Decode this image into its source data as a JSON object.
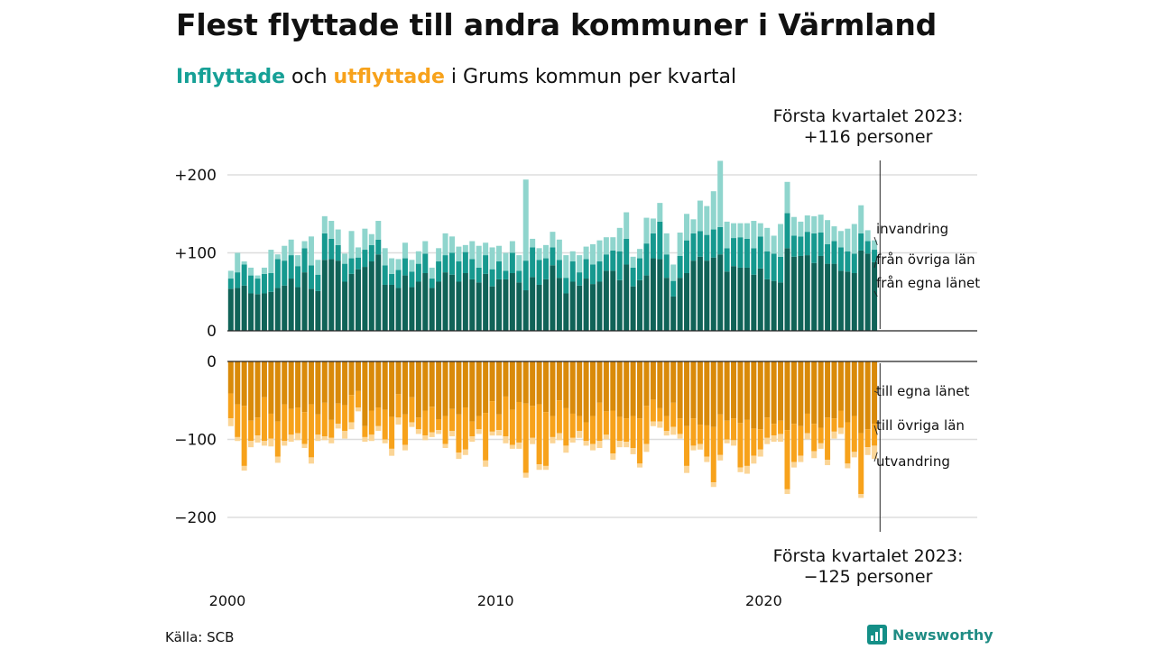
{
  "title": "Flest flyttade till andra kommuner i Värmland",
  "subtitle": {
    "in_word": "Inflyttade",
    "and_word": "och",
    "out_word": "utflyttade",
    "rest": "i Grums kommun per kvartal"
  },
  "callout_top": {
    "line1": "Första kvartalet 2023:",
    "line2": "+116 personer"
  },
  "callout_bottom": {
    "line1": "Första kvartalet 2023:",
    "line2": "−125 personer"
  },
  "source": "Källa: SCB",
  "brand": "Newsworthy",
  "colors": {
    "in_egna": "#106358",
    "in_ovriga": "#16998f",
    "in_invandring": "#8fd5cd",
    "out_egna": "#d98a0a",
    "out_ovriga": "#f7a21b",
    "out_utvandring": "#fbd596",
    "grid": "#dddddd"
  },
  "chart_data": [
    {
      "type": "bar",
      "stacked": true,
      "title": "Inflyttade",
      "x_start": 2000,
      "x_step": "quarter",
      "x_ticks": [
        "2000",
        "2010",
        "2020"
      ],
      "y_ticks": [
        "+200",
        "+100",
        "0"
      ],
      "ylim": [
        0,
        220
      ],
      "grid": true,
      "series": [
        {
          "name": "från egna länet",
          "values": [
            54,
            55,
            58,
            48,
            47,
            48,
            50,
            55,
            58,
            67,
            56,
            75,
            54,
            51,
            91,
            92,
            90,
            63,
            73,
            79,
            82,
            89,
            98,
            59,
            59,
            55,
            71,
            56,
            63,
            74,
            55,
            63,
            75,
            72,
            63,
            74,
            66,
            62,
            73,
            57,
            66,
            66,
            74,
            62,
            52,
            69,
            59,
            66,
            84,
            68,
            48,
            63,
            58,
            67,
            60,
            63,
            77,
            77,
            65,
            85,
            57,
            65,
            71,
            93,
            92,
            68,
            44,
            68,
            74,
            90,
            95,
            90,
            94,
            98,
            76,
            83,
            81,
            81,
            72,
            80,
            66,
            64,
            62,
            106,
            95,
            96,
            97,
            87,
            96,
            86,
            86,
            77,
            76,
            74,
            103,
            99,
            88
          ]
        },
        {
          "name": "från övriga län",
          "values": [
            13,
            20,
            27,
            23,
            20,
            25,
            24,
            37,
            32,
            30,
            27,
            31,
            30,
            21,
            34,
            26,
            20,
            23,
            20,
            15,
            22,
            21,
            19,
            25,
            14,
            23,
            22,
            20,
            23,
            25,
            12,
            26,
            22,
            28,
            26,
            27,
            26,
            19,
            24,
            22,
            23,
            11,
            26,
            15,
            38,
            38,
            32,
            27,
            23,
            23,
            20,
            26,
            17,
            25,
            25,
            26,
            21,
            26,
            37,
            33,
            24,
            28,
            41,
            32,
            48,
            30,
            20,
            28,
            42,
            35,
            33,
            33,
            36,
            35,
            30,
            36,
            39,
            37,
            34,
            41,
            36,
            35,
            33,
            45,
            27,
            25,
            30,
            38,
            30,
            25,
            29,
            30,
            26,
            25,
            22,
            16,
            16
          ]
        },
        {
          "name": "invandring",
          "values": [
            10,
            25,
            4,
            10,
            4,
            8,
            30,
            6,
            19,
            20,
            14,
            9,
            37,
            19,
            22,
            23,
            20,
            13,
            35,
            13,
            27,
            14,
            24,
            22,
            20,
            14,
            20,
            15,
            16,
            16,
            14,
            17,
            28,
            21,
            19,
            9,
            23,
            28,
            16,
            28,
            20,
            23,
            15,
            20,
            104,
            11,
            15,
            17,
            20,
            26,
            29,
            13,
            22,
            16,
            26,
            27,
            22,
            17,
            30,
            34,
            14,
            12,
            33,
            19,
            24,
            27,
            21,
            30,
            34,
            18,
            39,
            37,
            49,
            85,
            34,
            19,
            18,
            20,
            35,
            17,
            30,
            23,
            42,
            40,
            24,
            19,
            21,
            22,
            23,
            31,
            19,
            21,
            29,
            38,
            36,
            14,
            12
          ]
        }
      ]
    },
    {
      "type": "bar",
      "stacked": true,
      "title": "Utflyttade",
      "x_start": 2000,
      "x_step": "quarter",
      "x_ticks": [
        "2000",
        "2010",
        "2020"
      ],
      "y_ticks": [
        "0",
        "−100",
        "−200"
      ],
      "ylim": [
        -210,
        0
      ],
      "grid": true,
      "series": [
        {
          "name": "till egna länet",
          "values": [
            -41,
            -55,
            -57,
            -76,
            -72,
            -46,
            -67,
            -77,
            -55,
            -61,
            -59,
            -65,
            -55,
            -68,
            -53,
            -75,
            -54,
            -56,
            -43,
            -38,
            -83,
            -63,
            -59,
            -62,
            -71,
            -42,
            -68,
            -46,
            -72,
            -63,
            -58,
            -74,
            -70,
            -61,
            -68,
            -59,
            -77,
            -70,
            -66,
            -51,
            -68,
            -45,
            -62,
            -52,
            -54,
            -57,
            -55,
            -65,
            -70,
            -50,
            -60,
            -67,
            -70,
            -78,
            -70,
            -53,
            -64,
            -63,
            -71,
            -73,
            -70,
            -73,
            -57,
            -49,
            -60,
            -70,
            -53,
            -73,
            -83,
            -73,
            -81,
            -82,
            -84,
            -68,
            -76,
            -73,
            -79,
            -75,
            -86,
            -87,
            -72,
            -80,
            -76,
            -88,
            -80,
            -83,
            -67,
            -80,
            -85,
            -72,
            -73,
            -63,
            -78,
            -70,
            -92,
            -87,
            -80
          ]
        },
        {
          "name": "till övriga län",
          "values": [
            -32,
            -42,
            -77,
            -26,
            -23,
            -56,
            -32,
            -45,
            -47,
            -33,
            -33,
            -41,
            -68,
            -26,
            -43,
            -23,
            -26,
            -33,
            -35,
            -21,
            -14,
            -31,
            -24,
            -38,
            -41,
            -30,
            -39,
            -32,
            -15,
            -32,
            -33,
            -14,
            -36,
            -28,
            -49,
            -54,
            -19,
            -17,
            -61,
            -39,
            -20,
            -51,
            -45,
            -52,
            -89,
            -41,
            -77,
            -69,
            -27,
            -42,
            -48,
            -31,
            -19,
            -24,
            -36,
            -49,
            -30,
            -55,
            -31,
            -30,
            -41,
            -58,
            -49,
            -28,
            -17,
            -19,
            -31,
            -20,
            -51,
            -35,
            -25,
            -40,
            -71,
            -52,
            -24,
            -28,
            -57,
            -59,
            -35,
            -26,
            -26,
            -15,
            -17,
            -76,
            -49,
            -38,
            -25,
            -35,
            -20,
            -54,
            -17,
            -22,
            -53,
            -46,
            -78,
            -23,
            -28
          ]
        },
        {
          "name": "utvandring",
          "values": [
            -10,
            -5,
            -6,
            -8,
            -9,
            -6,
            -10,
            -8,
            -6,
            -9,
            -9,
            -5,
            -8,
            -8,
            -5,
            -7,
            -6,
            -10,
            -9,
            -5,
            -6,
            -8,
            -6,
            -5,
            -9,
            -9,
            -7,
            -6,
            -6,
            -6,
            -6,
            -5,
            -5,
            -7,
            -8,
            -7,
            -7,
            -6,
            -8,
            -5,
            -7,
            -9,
            -5,
            -8,
            -6,
            -8,
            -7,
            -5,
            -8,
            -9,
            -9,
            -6,
            -9,
            -6,
            -8,
            -9,
            -6,
            -8,
            -8,
            -7,
            -8,
            -5,
            -10,
            -6,
            -8,
            -6,
            -10,
            -6,
            -9,
            -6,
            -7,
            -7,
            -6,
            -7,
            -5,
            -7,
            -6,
            -10,
            -10,
            -9,
            -8,
            -8,
            -10,
            -6,
            -7,
            -8,
            -8,
            -9,
            -7,
            -7,
            -9,
            -8,
            -6,
            -7,
            -5,
            -10,
            -17
          ]
        }
      ]
    }
  ],
  "labels_in": [
    "invandring",
    "från övriga län",
    "från egna länet"
  ],
  "labels_out": [
    "till egna länet",
    "till övriga län",
    "utvandring"
  ]
}
